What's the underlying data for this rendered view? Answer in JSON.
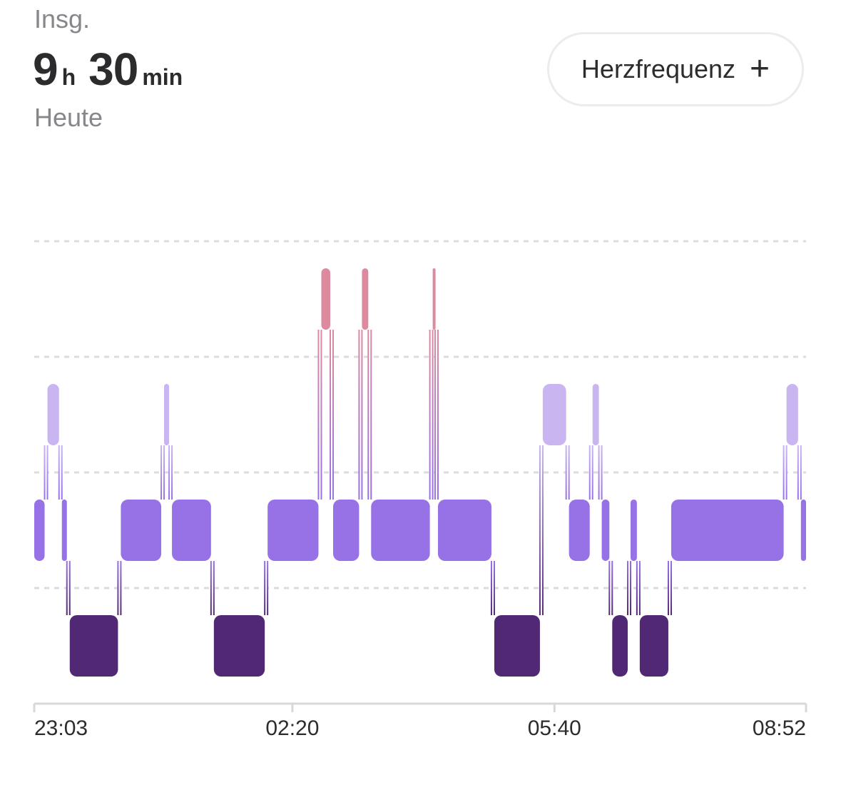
{
  "header": {
    "label": "Insg.",
    "hours": "9",
    "hours_unit": "h",
    "minutes": "30",
    "minutes_unit": "min",
    "date_label": "Heute"
  },
  "heart_rate_button": {
    "label": "Herzfrequenz",
    "icon": "plus-icon"
  },
  "chart_data": {
    "type": "sleep-stage-timeline",
    "x_range": [
      "23:03",
      "08:52"
    ],
    "x_ticks": [
      "23:03",
      "02:20",
      "05:40",
      "08:52"
    ],
    "levels": [
      "awake",
      "rem",
      "core",
      "deep"
    ],
    "grid": true,
    "colors": {
      "awake": "#de8a9e",
      "rem": "#c9b5f0",
      "core": "#9771e6",
      "deep": "#502874",
      "grid": "#dcdcdc",
      "axis": "#d8d8d8"
    },
    "segments": [
      {
        "stage": "core",
        "start": "23:03",
        "end": "23:12"
      },
      {
        "stage": "rem",
        "start": "23:12",
        "end": "23:23"
      },
      {
        "stage": "core",
        "start": "23:23",
        "end": "23:29"
      },
      {
        "stage": "deep",
        "start": "23:29",
        "end": "00:08"
      },
      {
        "stage": "core",
        "start": "00:08",
        "end": "00:41"
      },
      {
        "stage": "rem",
        "start": "00:41",
        "end": "00:47"
      },
      {
        "stage": "core",
        "start": "00:47",
        "end": "01:19"
      },
      {
        "stage": "deep",
        "start": "01:19",
        "end": "02:00"
      },
      {
        "stage": "core",
        "start": "02:00",
        "end": "02:41"
      },
      {
        "stage": "awake",
        "start": "02:41",
        "end": "02:50"
      },
      {
        "stage": "core",
        "start": "02:50",
        "end": "03:12"
      },
      {
        "stage": "awake",
        "start": "03:12",
        "end": "03:19"
      },
      {
        "stage": "core",
        "start": "03:19",
        "end": "04:06"
      },
      {
        "stage": "awake",
        "start": "04:06",
        "end": "04:10"
      },
      {
        "stage": "core",
        "start": "04:10",
        "end": "04:53"
      },
      {
        "stage": "deep",
        "start": "04:53",
        "end": "05:30"
      },
      {
        "stage": "rem",
        "start": "05:30",
        "end": "05:50"
      },
      {
        "stage": "core",
        "start": "05:50",
        "end": "06:08"
      },
      {
        "stage": "rem",
        "start": "06:08",
        "end": "06:15"
      },
      {
        "stage": "core",
        "start": "06:15",
        "end": "06:23"
      },
      {
        "stage": "deep",
        "start": "06:23",
        "end": "06:37"
      },
      {
        "stage": "core",
        "start": "06:37",
        "end": "06:44"
      },
      {
        "stage": "deep",
        "start": "06:44",
        "end": "07:08"
      },
      {
        "stage": "core",
        "start": "07:08",
        "end": "08:36"
      },
      {
        "stage": "rem",
        "start": "08:36",
        "end": "08:47"
      },
      {
        "stage": "core",
        "start": "08:47",
        "end": "08:52"
      }
    ]
  }
}
